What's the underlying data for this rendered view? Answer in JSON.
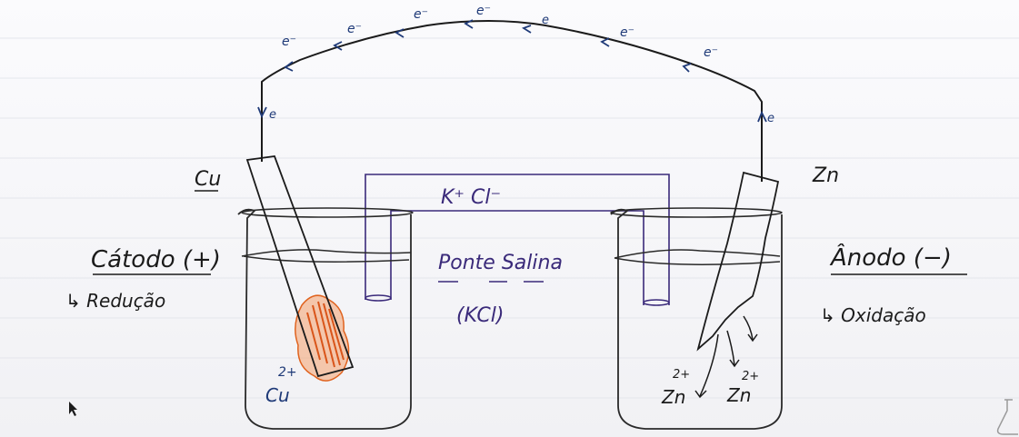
{
  "electron_label": "e",
  "electron_label_minus": "e⁻",
  "cathode": {
    "metal": "Cu",
    "title": "Cátodo (+)",
    "process": "↳ Redução",
    "deposit_ion": "2+",
    "deposit_metal": "Cu"
  },
  "anode": {
    "metal": "Zn",
    "title": "Ânodo (−)",
    "process": "↳ Oxidação",
    "ion_charge_1": "2+",
    "ion_metal_1": "Zn",
    "ion_charge_2": "2+",
    "ion_metal_2": "Zn"
  },
  "salt_bridge": {
    "ions": "K⁺     Cl⁻",
    "name": "Ponte Salina",
    "formula": "(KCl)"
  },
  "colors": {
    "wire": "#1b1b1b",
    "electron_ink": "#1f3a78",
    "bridge": "#3a2a7a",
    "copper_deposit": "#e0631f",
    "glass": "#2a2a2a"
  }
}
